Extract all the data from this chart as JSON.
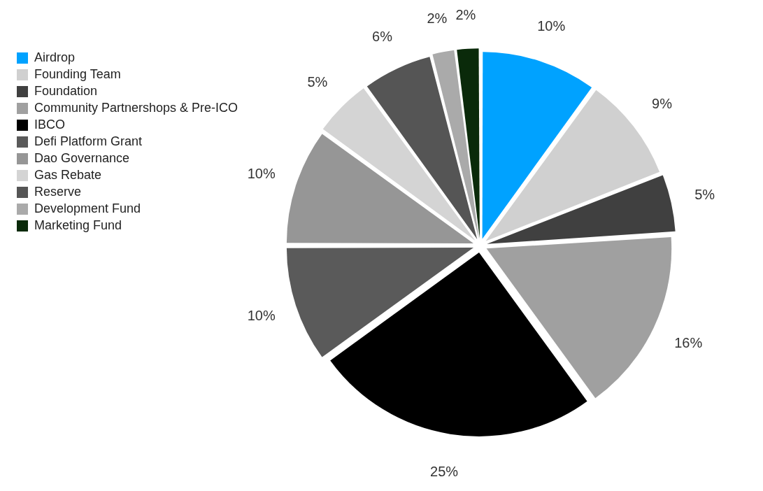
{
  "chart_data": {
    "type": "pie",
    "categories": [
      "Airdrop",
      "Founding Team",
      "Foundation",
      "Community Partnershops & Pre-ICO",
      "IBCO",
      "Defi Platform Grant",
      "Dao Governance",
      "Gas Rebate",
      "Reserve",
      "Development Fund",
      "Marketing Fund"
    ],
    "values": [
      10,
      9,
      5,
      16,
      25,
      10,
      10,
      5,
      6,
      2,
      2
    ],
    "value_labels": [
      "10%",
      "9%",
      "5%",
      "16%",
      "25%",
      "10%",
      "10%",
      "5%",
      "6%",
      "2%",
      "2%"
    ],
    "colors": [
      "#00a2ff",
      "#d0d0d0",
      "#404040",
      "#a0a0a0",
      "#000000",
      "#5a5a5a",
      "#969696",
      "#d4d4d4",
      "#555555",
      "#aaaaaa",
      "#0a2a0a"
    ],
    "legend": "left"
  }
}
